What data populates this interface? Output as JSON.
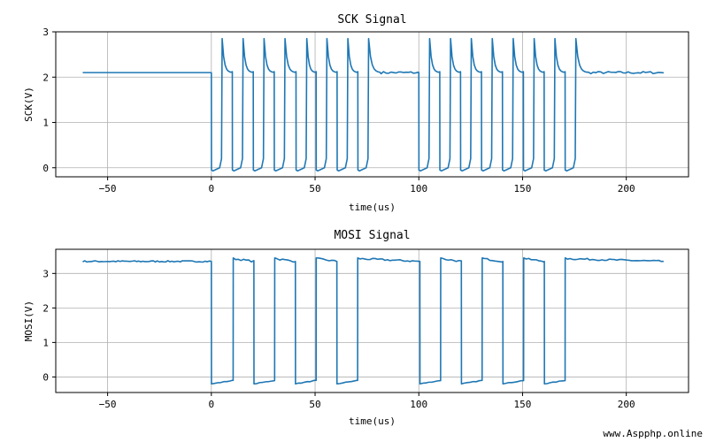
{
  "chart_data": [
    {
      "type": "line",
      "title": "SCK Signal",
      "xlabel": "time(us)",
      "ylabel": "SCK(V)",
      "xlim": [
        -75,
        230
      ],
      "ylim": [
        -0.2,
        3.0
      ],
      "xticks": [
        -50,
        0,
        50,
        100,
        150,
        200
      ],
      "yticks": [
        0,
        1,
        2,
        3
      ],
      "grid": true,
      "color": "#1f77b4",
      "idle_level_v": 2.1,
      "low_level_v": -0.05,
      "overshoot_peak_v": 2.85,
      "rising_edges_us": [
        5.2,
        15.3,
        25.4,
        35.5,
        46.0,
        55.7,
        65.8,
        75.8,
        105.2,
        115.3,
        125.3,
        135.4,
        145.5,
        155.6,
        165.6,
        175.7
      ],
      "falling_edges_us": [
        0.0,
        10.1,
        20.2,
        30.3,
        40.8,
        50.5,
        60.6,
        70.6,
        100.0,
        110.1,
        120.1,
        130.2,
        140.3,
        150.4,
        160.4,
        170.5
      ],
      "time_range_us": [
        -62,
        218
      ]
    },
    {
      "type": "line",
      "title": "MOSI Signal",
      "xlabel": "time(us)",
      "ylabel": "MOSI(V)",
      "xlim": [
        -75,
        230
      ],
      "ylim": [
        -0.45,
        3.7
      ],
      "xticks": [
        -50,
        0,
        50,
        100,
        150,
        200
      ],
      "yticks": [
        0,
        1,
        2,
        3
      ],
      "grid": true,
      "color": "#1f77b4",
      "high_level_v": 3.35,
      "low_level_v": -0.15,
      "transitions_us": [
        0,
        10.5,
        20.5,
        30.5,
        40.5,
        50.5,
        60.5,
        70.5,
        100.5,
        110.5,
        120.5,
        130.5,
        140.5,
        150.5,
        160.5,
        170.5
      ],
      "time_range_us": [
        -62,
        218
      ]
    }
  ],
  "watermark": "www.Aspphp.online"
}
